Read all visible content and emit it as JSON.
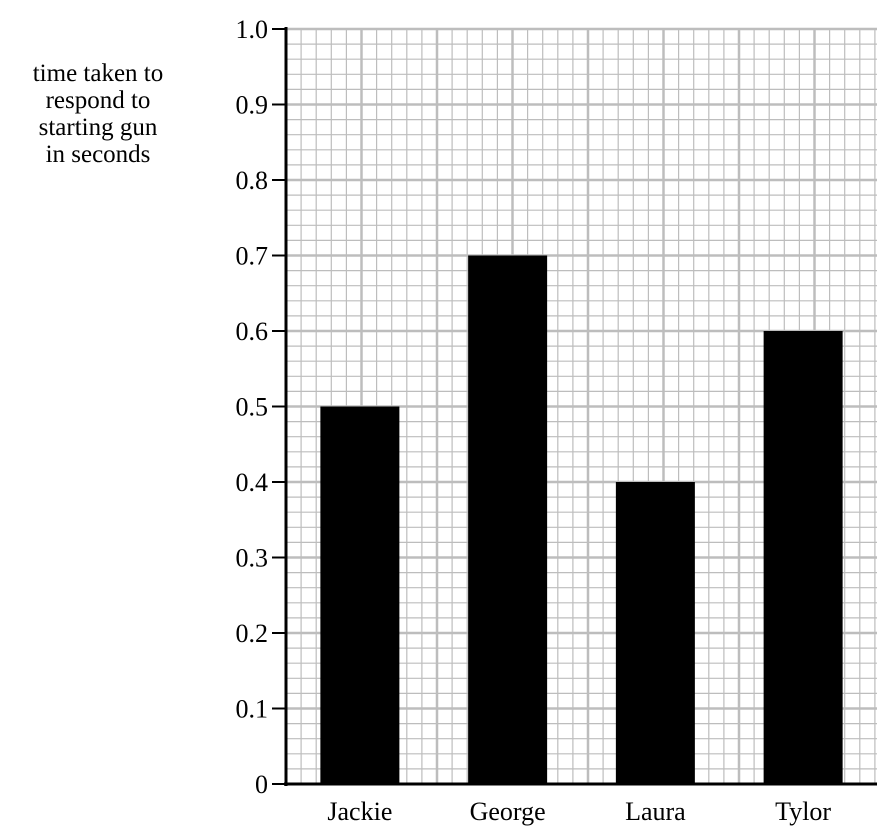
{
  "chart_data": {
    "type": "bar",
    "categories": [
      "Jackie",
      "George",
      "Laura",
      "Tylor"
    ],
    "values": [
      0.5,
      0.7,
      0.4,
      0.6
    ],
    "ylabel_lines": [
      "time taken to",
      "respond to",
      "starting gun",
      "in seconds"
    ],
    "xlabel": "",
    "title": "",
    "ylim": [
      0,
      1.0
    ],
    "yticks": [
      "0",
      "0.1",
      "0.2",
      "0.3",
      "0.4",
      "0.5",
      "0.6",
      "0.7",
      "0.8",
      "0.9",
      "1.0"
    ],
    "grid": true,
    "bar_color": "#000000",
    "grid_color": "#bdbdbd"
  }
}
